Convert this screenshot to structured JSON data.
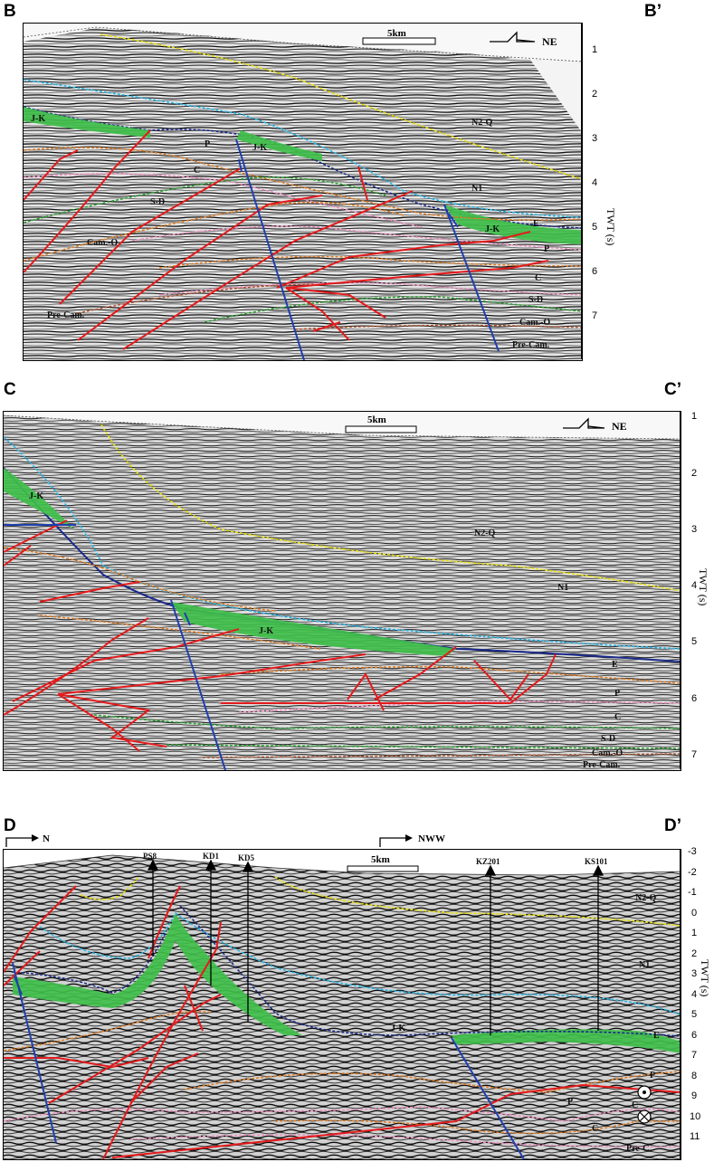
{
  "panels": [
    {
      "id": "B",
      "left_label": "B",
      "right_label": "B’",
      "scale_label": "5km",
      "direction_label": "NE",
      "axis_title": "TWT (s)",
      "ticks": [
        "1",
        "2",
        "3",
        "4",
        "5",
        "6",
        "7"
      ],
      "units": [
        "J-K",
        "P",
        "J-K",
        "C",
        "S-D",
        "Cam.-O",
        "Pre-Cam.",
        "N2-Q",
        "N1",
        "E",
        "J-K",
        "P",
        "C",
        "S-D",
        "Cam.-O",
        "Pre-Cam."
      ]
    },
    {
      "id": "C",
      "left_label": "C",
      "right_label": "C’",
      "scale_label": "5km",
      "direction_label": "NE",
      "axis_title": "TWT (s)",
      "ticks": [
        "1",
        "2",
        "3",
        "4",
        "5",
        "6",
        "7"
      ],
      "units": [
        "J-K",
        "N2-Q",
        "N1",
        "J-K",
        "E",
        "P",
        "C",
        "S-D",
        "Cam.-O",
        "Pre-Cam."
      ]
    },
    {
      "id": "D",
      "left_label": "D",
      "right_label": "D’",
      "scale_label": "5km",
      "direction_label_left": "N",
      "direction_label": "NWW",
      "axis_title": "TWT (s)",
      "ticks": [
        "-3",
        "-2",
        "-1",
        "0",
        "1",
        "2",
        "3",
        "4",
        "5",
        "6",
        "7",
        "8",
        "9",
        "10",
        "11"
      ],
      "wells": [
        "PS8",
        "KD1",
        "KD5",
        "KZ201",
        "KS101"
      ],
      "units": [
        "N2-Q",
        "N1",
        "J-K",
        "E",
        "P",
        "C",
        "P",
        "C",
        "Pre-C"
      ]
    }
  ],
  "colors": {
    "fault_thrust": "#e41a1c",
    "fault_normal": "#1f3fae",
    "jk_fill": "#3fbf4a",
    "horizon_yellow": "#e8e000",
    "horizon_cyan": "#22b5e6",
    "horizon_navy": "#1a2a8a",
    "horizon_orange": "#e07a1e",
    "horizon_pink": "#f08cc0",
    "horizon_green": "#23a12a",
    "horizon_brown": "#b0502a"
  }
}
